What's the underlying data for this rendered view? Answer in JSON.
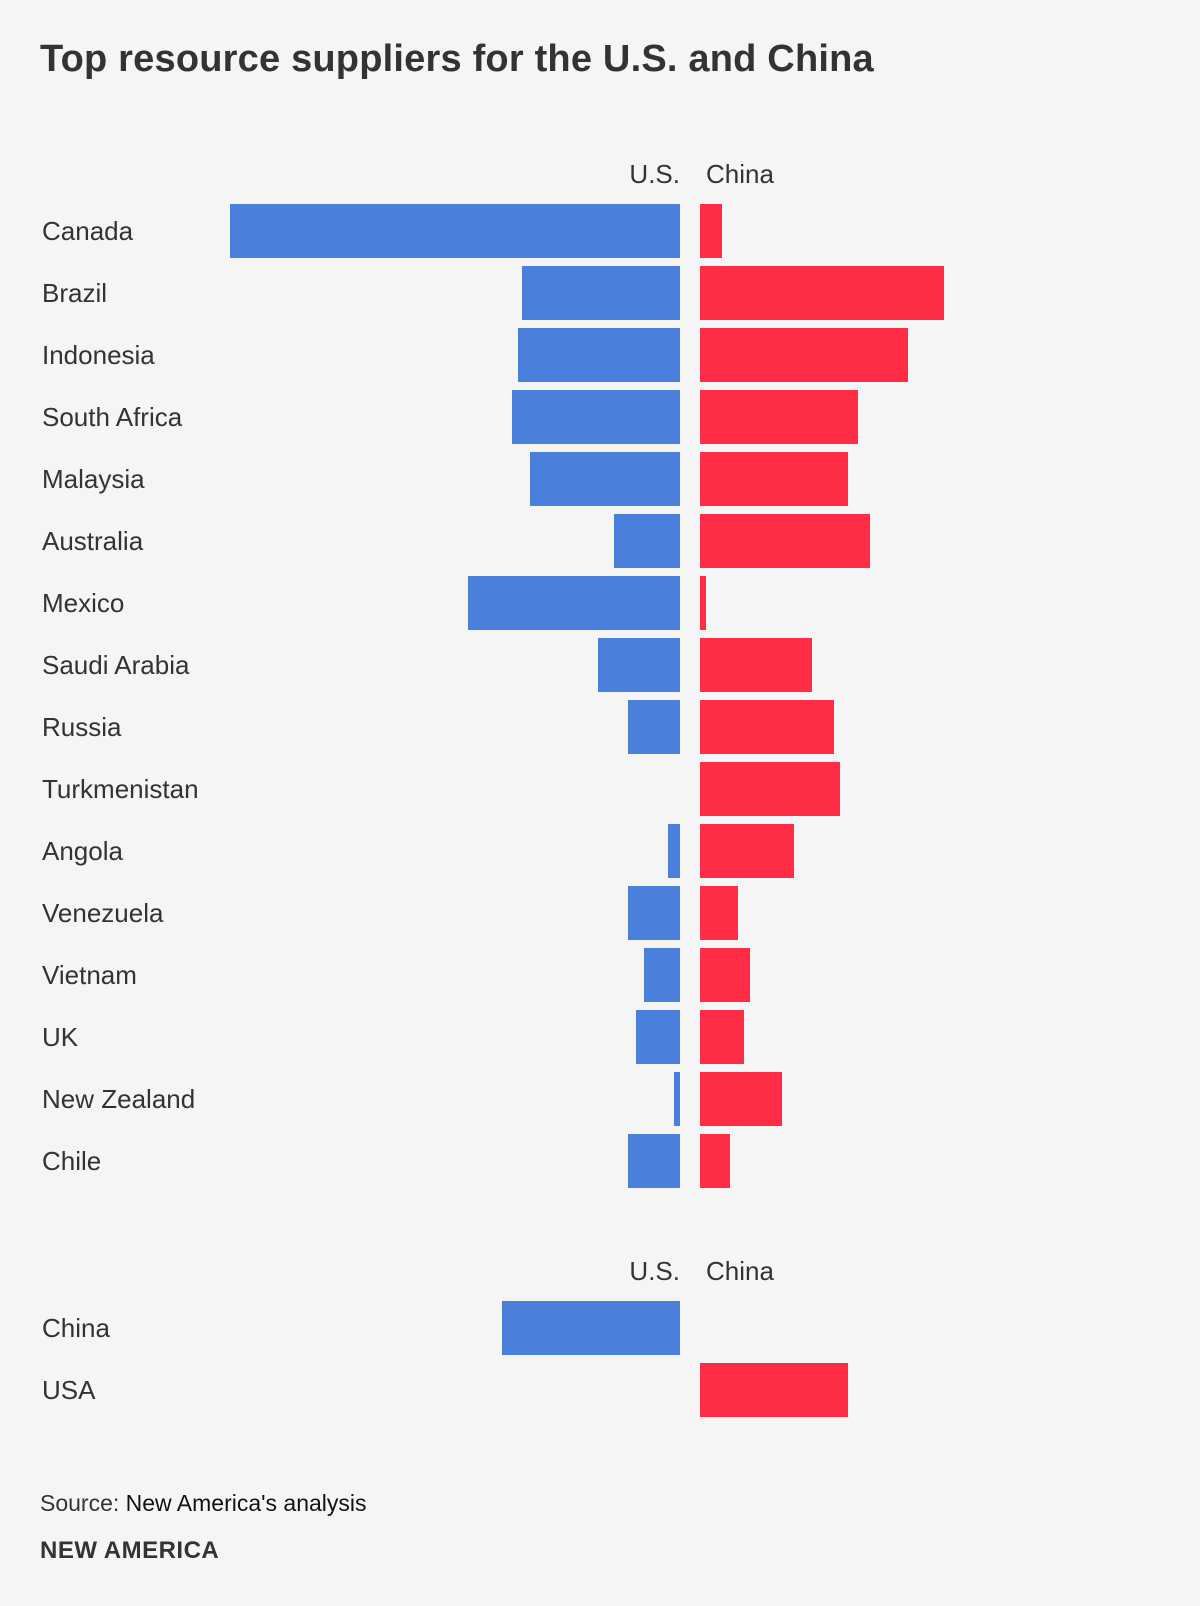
{
  "chart_data": {
    "type": "bar",
    "title": "Top resource suppliers for the U.S. and China",
    "series_labels": {
      "us": "U.S.",
      "china": "China"
    },
    "colors": {
      "us": "#4a80dc",
      "china": "#fe2d45",
      "background": "#f5f5f5",
      "text": "#333333"
    },
    "groups": [
      {
        "name": "suppliers",
        "categories": [
          "Canada",
          "Brazil",
          "Indonesia",
          "South Africa",
          "Malaysia",
          "Australia",
          "Mexico",
          "Saudi Arabia",
          "Russia",
          "Turkmenistan",
          "Angola",
          "Venezuela",
          "Vietnam",
          "UK",
          "New Zealand",
          "Chile"
        ],
        "series": [
          {
            "name": "U.S.",
            "values": [
              450,
              158,
              162,
              168,
              150,
              66,
              212,
              82,
              52,
              0,
              12,
              52,
              36,
              44,
              6,
              52
            ]
          },
          {
            "name": "China",
            "values": [
              22,
              244,
              208,
              158,
              148,
              170,
              6,
              112,
              134,
              140,
              94,
              38,
              50,
              44,
              82,
              30
            ]
          }
        ]
      },
      {
        "name": "bilateral",
        "categories": [
          "China",
          "USA"
        ],
        "series": [
          {
            "name": "U.S.",
            "values": [
              178,
              0
            ]
          },
          {
            "name": "China",
            "values": [
              0,
              148
            ]
          }
        ]
      }
    ],
    "xlabel": "",
    "ylabel": ""
  },
  "source": {
    "label": "Source:",
    "value": "New America's analysis"
  },
  "brand": "NEW AMERICA"
}
